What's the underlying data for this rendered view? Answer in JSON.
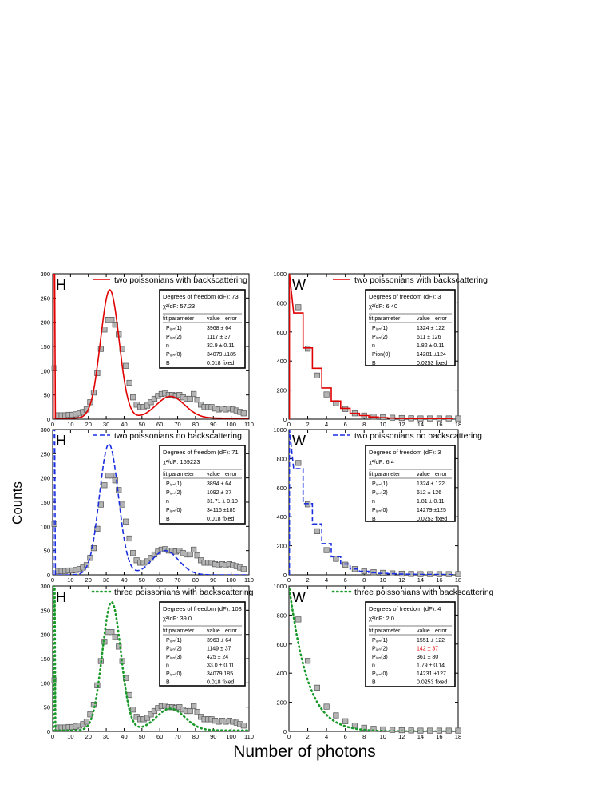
{
  "figure": {
    "ylabel": "Counts",
    "xlabel": "Number of photons"
  },
  "chart_data": [
    {
      "type": "scatter",
      "panel": "H",
      "legend": "two poissonians with backscattering",
      "fit_color": "#e00000",
      "fit_style": "solid",
      "xlim": [
        0,
        110
      ],
      "ylim": [
        0,
        300
      ],
      "xticks": [
        "0",
        "10",
        "20",
        "30",
        "40",
        "50",
        "60",
        "70",
        "80",
        "90",
        "100",
        "110"
      ],
      "yticks": [
        "0",
        "50",
        "100",
        "150",
        "200",
        "250",
        "300"
      ],
      "fit_table": {
        "title": "Degrees of freedom (dF):  73",
        "chi": "χ²/dF:  57.23",
        "header": [
          "fit parameter",
          "value",
          "error"
        ],
        "rows": [
          [
            "Pᵢₒₙ(1)",
            "3968 ± 64"
          ],
          [
            "Pᵢₒₙ(2)",
            "1117 ± 37"
          ],
          [
            "n",
            "32.9 ± 0.11"
          ],
          [
            "Pᵢₒₙ(0)",
            "34079 ±185"
          ],
          [
            "B",
            "0.018    fixed"
          ]
        ]
      }
    },
    {
      "type": "scatter",
      "panel": "W",
      "legend": "two poissonians with backscattering",
      "fit_color": "#e00000",
      "fit_style": "solid",
      "xlim": [
        0,
        18
      ],
      "ylim": [
        0,
        1000
      ],
      "xticks": [
        "0",
        "2",
        "4",
        "6",
        "8",
        "10",
        "12",
        "14",
        "16",
        "18"
      ],
      "yticks": [
        "0",
        "200",
        "400",
        "600",
        "800",
        "1000"
      ],
      "fit_table": {
        "title": "Degrees of freedom (dF):  3",
        "chi": "χ²/dF:  6.40",
        "header": [
          "fit parameter",
          "value",
          "error"
        ],
        "rows": [
          [
            "Pᵢₒₙ(1)",
            "1324 ± 122"
          ],
          [
            "Pᵢₒₙ(2)",
            "611 ± 126"
          ],
          [
            "n",
            "1.82 ± 0.11"
          ],
          [
            "Pion(0)",
            "14281 ±124"
          ],
          [
            "B",
            "0.0253  fixed"
          ]
        ]
      }
    },
    {
      "type": "scatter",
      "panel": "H",
      "legend": "two poissonians no backscattering",
      "fit_color": "#1a2ee0",
      "fit_style": "dashed",
      "xlim": [
        0,
        110
      ],
      "ylim": [
        0,
        300
      ],
      "xticks": [
        "0",
        "10",
        "20",
        "30",
        "40",
        "50",
        "60",
        "70",
        "80",
        "90",
        "100",
        "110"
      ],
      "yticks": [
        "0",
        "50",
        "100",
        "150",
        "200",
        "250",
        "300"
      ],
      "fit_table": {
        "title": "Degrees of freedom (dF):  71",
        "chi": "χ²/dF:  169223",
        "header": [
          "fit parameter",
          "value",
          "error"
        ],
        "rows": [
          [
            "Pᵢₒₙ(1)",
            "3894 ± 64"
          ],
          [
            "Pᵢₒₙ(2)",
            "1092 ± 37"
          ],
          [
            "n",
            "31.71 ± 0.10"
          ],
          [
            "Pᵢₒₙ(0)",
            "34116 ±185"
          ],
          [
            "B",
            "0.018    fixed"
          ]
        ]
      }
    },
    {
      "type": "scatter",
      "panel": "W",
      "legend": "two poissonians no backscattering",
      "fit_color": "#1a2ee0",
      "fit_style": "dashed",
      "xlim": [
        0,
        18
      ],
      "ylim": [
        0,
        1000
      ],
      "xticks": [
        "0",
        "2",
        "4",
        "6",
        "8",
        "10",
        "12",
        "14",
        "16",
        "18"
      ],
      "yticks": [
        "0",
        "200",
        "400",
        "600",
        "800",
        "1000"
      ],
      "fit_table": {
        "title": "Degrees of freedom (dF):  3",
        "chi": "χ²/dF:  6.4",
        "header": [
          "fit parameter",
          "value",
          "error"
        ],
        "rows": [
          [
            "Pᵢₒₙ(1)",
            "1324 ± 122"
          ],
          [
            "Pᵢₒₙ(2)",
            "612 ± 126"
          ],
          [
            "n",
            "1.81 ± 0.11"
          ],
          [
            "Pᵢₒₙ(0)",
            "14279 ±125"
          ],
          [
            "B",
            "0.0253  fixed"
          ]
        ]
      }
    },
    {
      "type": "scatter",
      "panel": "H",
      "legend": "three poissonians with backscattering",
      "fit_color": "#1a9a2a",
      "fit_style": "dotted",
      "xlim": [
        0,
        110
      ],
      "ylim": [
        0,
        300
      ],
      "xticks": [
        "0",
        "10",
        "20",
        "30",
        "40",
        "50",
        "60",
        "70",
        "80",
        "90",
        "100",
        "110"
      ],
      "yticks": [
        "0",
        "50",
        "100",
        "150",
        "200",
        "250",
        "300"
      ],
      "fit_table": {
        "title": "Degrees of freedom (dF):  108",
        "chi": "χ²/dF:  39.0",
        "header": [
          "fit parameter",
          "value",
          "error"
        ],
        "rows": [
          [
            "Pᵢₒₙ(1)",
            "3963 ± 64"
          ],
          [
            "Pᵢₒₙ(2)",
            "1149 ± 37"
          ],
          [
            "Pᵢₒₙ(3)",
            "425 ± 24"
          ],
          [
            "n",
            "33.0 ± 0.11"
          ],
          [
            "Pᵢₒₙ(0)",
            "34079 185"
          ],
          [
            "B",
            "0.018    fixed"
          ]
        ]
      }
    },
    {
      "type": "scatter",
      "panel": "W",
      "legend": "three poissonians with backscattering",
      "fit_color": "#1a9a2a",
      "fit_style": "dotted",
      "xlim": [
        0,
        18
      ],
      "ylim": [
        0,
        1000
      ],
      "xticks": [
        "0",
        "2",
        "4",
        "6",
        "8",
        "10",
        "12",
        "14",
        "16",
        "18"
      ],
      "yticks": [
        "0",
        "200",
        "400",
        "600",
        "800",
        "1000"
      ],
      "highlight_row": 1,
      "highlight_color": "#e00000",
      "fit_table": {
        "title": "Degrees of freedom (dF):  4",
        "chi": "χ²/dF:  2.0",
        "header": [
          "fit parameter",
          "value",
          "error"
        ],
        "rows": [
          [
            "Pᵢₒₙ(1)",
            "1551 ± 122"
          ],
          [
            "Pᵢₒₙ(2)",
            "142 ± 37"
          ],
          [
            "Pᵢₒₙ(3)",
            "361 ± 80"
          ],
          [
            "n",
            "1.79 ± 0.14"
          ],
          [
            "Pᵢₒₙ(0)",
            "14231 ±127"
          ],
          [
            "B",
            "0.0253  fixed"
          ]
        ]
      }
    }
  ],
  "data_H": {
    "x": [
      1,
      3,
      5,
      7,
      9,
      11,
      13,
      15,
      17,
      19,
      21,
      23,
      25,
      27,
      29,
      31,
      33,
      35,
      37,
      39,
      41,
      43,
      45,
      47,
      49,
      51,
      53,
      55,
      57,
      59,
      61,
      63,
      65,
      67,
      69,
      71,
      73,
      75,
      77,
      79,
      81,
      83,
      85,
      87,
      89,
      91,
      93,
      95,
      97,
      99,
      101,
      103,
      105,
      107
    ],
    "y": [
      105,
      8,
      8,
      8,
      9,
      9,
      10,
      12,
      15,
      20,
      35,
      55,
      95,
      145,
      185,
      205,
      205,
      195,
      175,
      145,
      110,
      75,
      45,
      30,
      25,
      25,
      28,
      35,
      42,
      48,
      52,
      53,
      50,
      50,
      48,
      50,
      45,
      42,
      42,
      52,
      40,
      30,
      25,
      25,
      25,
      22,
      20,
      22,
      20,
      22,
      20,
      18,
      15,
      12
    ]
  },
  "data_W": {
    "x": [
      1,
      2,
      3,
      4,
      5,
      6,
      7,
      8,
      9,
      10,
      11,
      12,
      13,
      14,
      15,
      16,
      17,
      18
    ],
    "y": [
      770,
      485,
      300,
      170,
      110,
      70,
      40,
      25,
      18,
      14,
      10,
      8,
      6,
      5,
      5,
      5,
      5,
      5
    ]
  }
}
